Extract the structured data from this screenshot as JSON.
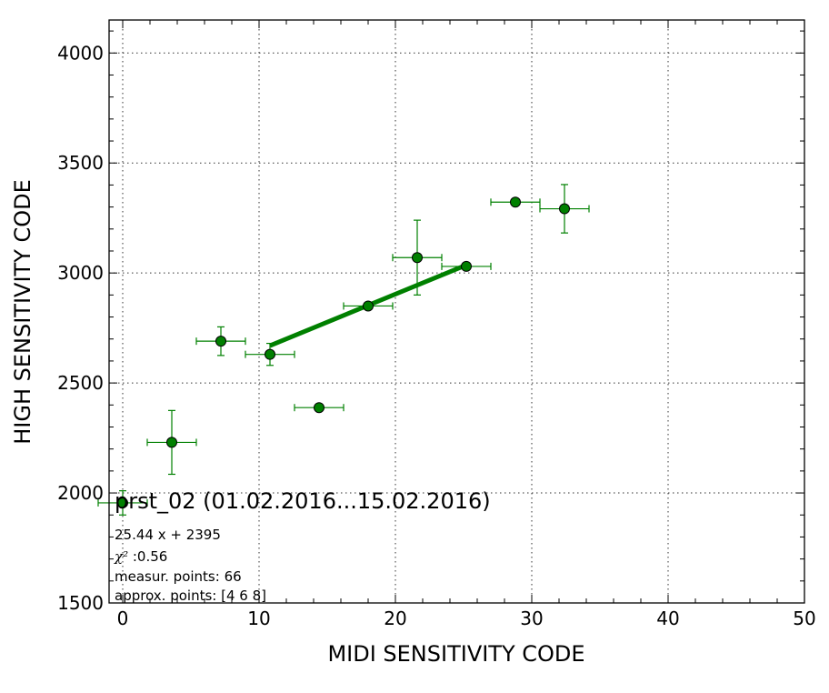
{
  "chart_data": {
    "type": "scatter",
    "title": "",
    "xlabel": "MIDI SENSITIVITY CODE",
    "ylabel": "HIGH SENSITIVITY CODE",
    "xlim": [
      -1,
      50
    ],
    "ylim": [
      1500,
      4150
    ],
    "x_ticks": [
      0,
      10,
      20,
      30,
      40,
      50
    ],
    "y_ticks": [
      1500,
      2000,
      2500,
      3000,
      3500,
      4000
    ],
    "grid": true,
    "colors": {
      "marker": "#008000",
      "errorbar": "#008000",
      "fit_line": "#008000"
    },
    "series": [
      {
        "marker": "circle",
        "points": [
          {
            "x": 0.0,
            "y": 1955,
            "xerr": 1.8,
            "yerr": 55
          },
          {
            "x": 3.6,
            "y": 2230,
            "xerr": 1.8,
            "yerr": 145
          },
          {
            "x": 7.2,
            "y": 2690,
            "xerr": 1.8,
            "yerr": 65
          },
          {
            "x": 10.8,
            "y": 2630,
            "xerr": 1.8,
            "yerr": 50
          },
          {
            "x": 14.4,
            "y": 2388,
            "xerr": 1.8,
            "yerr": 0
          },
          {
            "x": 18.0,
            "y": 2850,
            "xerr": 1.8,
            "yerr": 0
          },
          {
            "x": 21.6,
            "y": 3070,
            "xerr": 1.8,
            "yerr": 170
          },
          {
            "x": 25.2,
            "y": 3030,
            "xerr": 1.8,
            "yerr": 0
          },
          {
            "x": 28.8,
            "y": 3322,
            "xerr": 1.8,
            "yerr": 0
          },
          {
            "x": 32.4,
            "y": 3292,
            "xerr": 1.8,
            "yerr": 110
          }
        ]
      }
    ],
    "fit": {
      "slope": 25.44,
      "intercept": 2395,
      "x_range": [
        10.8,
        25.2
      ]
    },
    "annotations": {
      "name": "prst_02 (01.02.2016...15.02.2016)",
      "equation": "25.44 x + 2395",
      "chi2_label": "χ²",
      "chi2_value": " :0.56",
      "measur_points": "measur. points: 66",
      "approx_points": "approx. points: [4 6 8]"
    }
  }
}
